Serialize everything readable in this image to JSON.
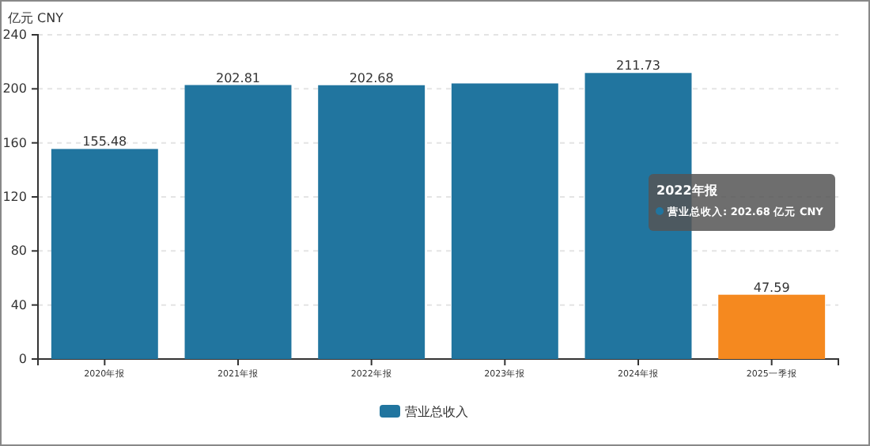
{
  "chart_data": {
    "type": "bar",
    "ylabel": "亿元  CNY",
    "categories": [
      "2020年报",
      "2021年报",
      "2022年报",
      "2023年报",
      "2024年报",
      "2025一季报"
    ],
    "series": [
      {
        "name": "营业总收入",
        "color": "#21759f",
        "colors": [
          "#21759f",
          "#21759f",
          "#21759f",
          "#21759f",
          "#21759f",
          "#f5891f"
        ],
        "values": [
          155.48,
          202.81,
          202.68,
          204,
          211.73,
          47.59
        ],
        "value_labels": [
          "155.48",
          "202.81",
          "202.68",
          null,
          "211.73",
          "47.59"
        ]
      }
    ],
    "ylim": [
      0,
      240
    ],
    "yticks": [
      0,
      40,
      80,
      120,
      160,
      200,
      240
    ],
    "grid": "y",
    "legend": "bottom",
    "annotations": [
      "2022年报",
      "营业总收入: 202.68 亿元 CNY"
    ]
  }
}
